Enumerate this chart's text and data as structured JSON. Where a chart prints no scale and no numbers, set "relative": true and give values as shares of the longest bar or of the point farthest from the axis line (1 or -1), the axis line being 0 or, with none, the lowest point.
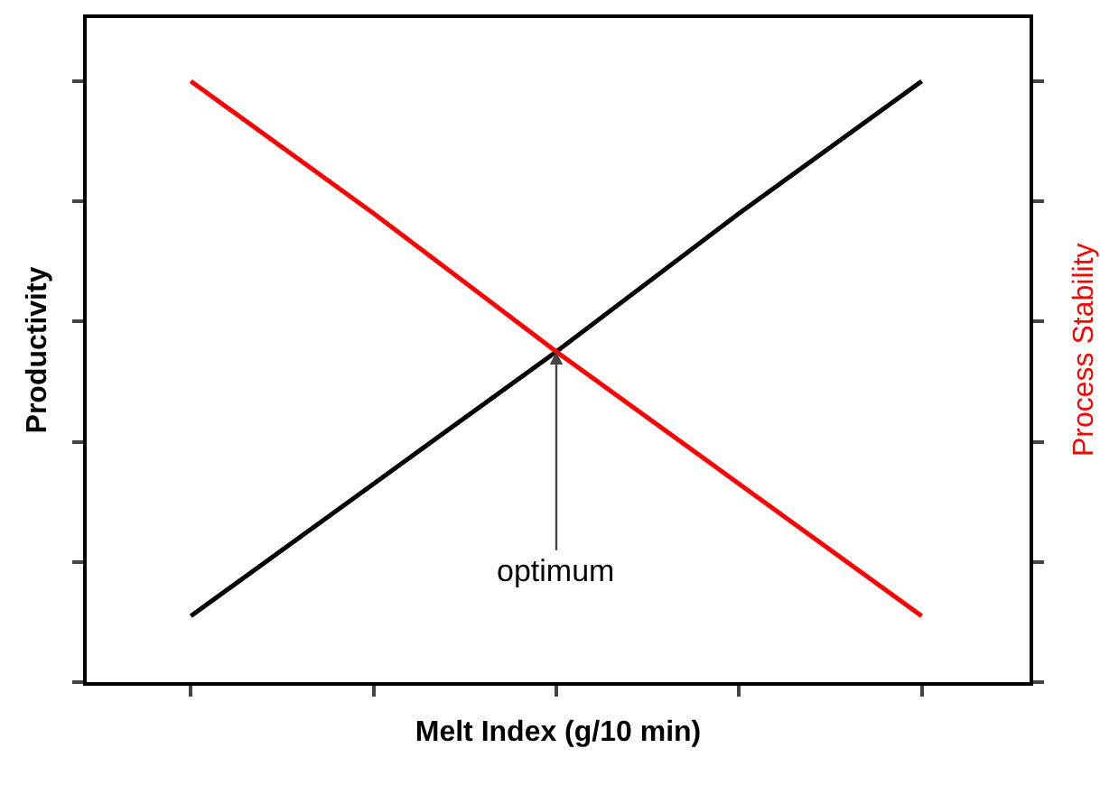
{
  "chart_data": {
    "type": "line",
    "relative": true,
    "xlabel": "Melt Index (g/10 min)",
    "ylabel": "Productivity",
    "y2label": "Process Stability",
    "categories": [
      null,
      null,
      null,
      null,
      null
    ],
    "series": [
      {
        "color": "#000000",
        "values": [
          0.11,
          0.33,
          0.55,
          0.78,
          1.0
        ]
      },
      {
        "color": "#ff0000",
        "values": [
          1.0,
          0.78,
          0.55,
          0.33,
          0.11
        ]
      }
    ],
    "annotations": [
      "optimum"
    ],
    "marker": "none",
    "line_style": "solid"
  }
}
